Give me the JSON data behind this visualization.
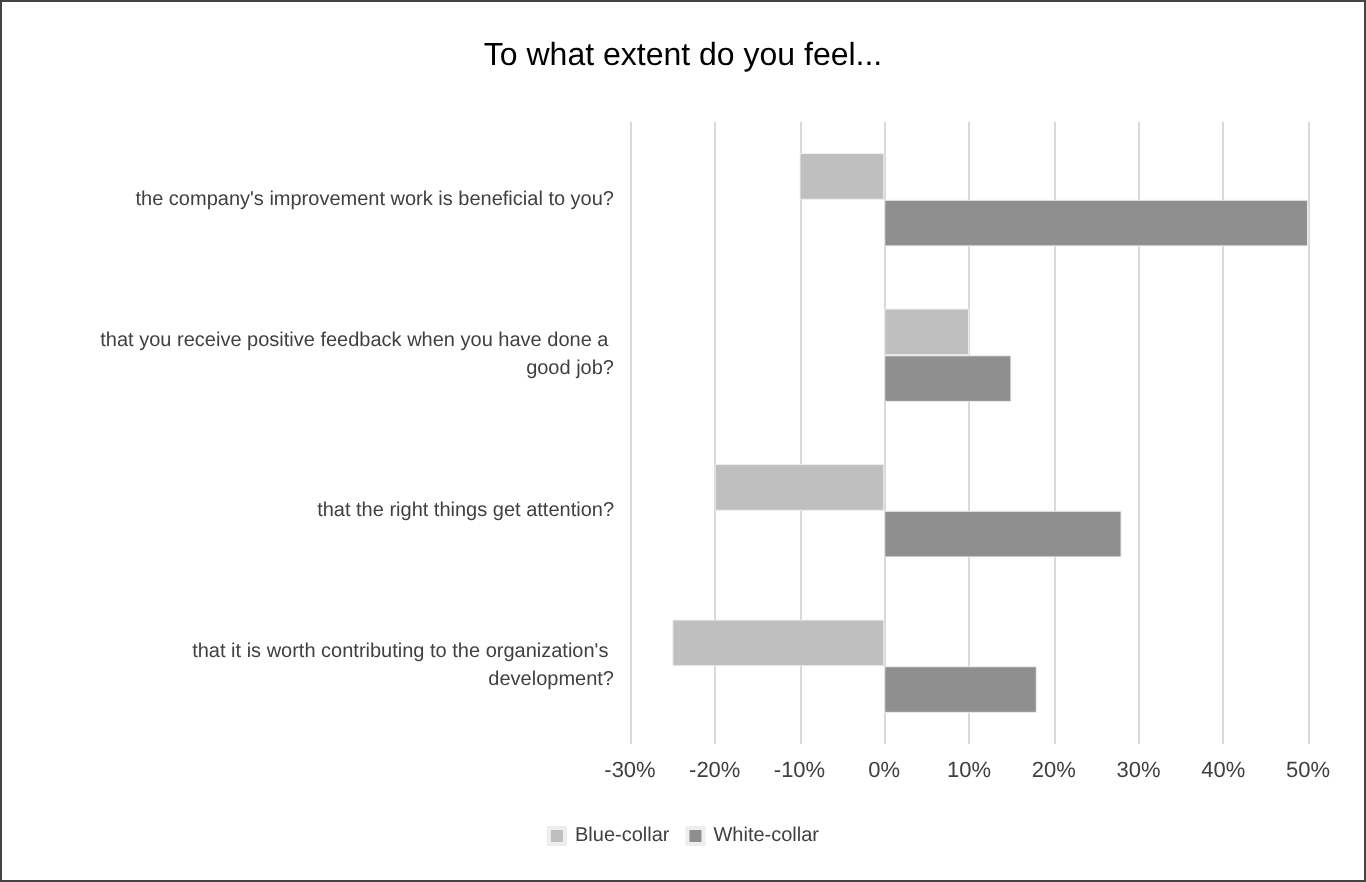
{
  "chart_data": {
    "type": "bar",
    "orientation": "horizontal",
    "title": "To what extent do you feel...",
    "categories": [
      "the company's improvement work is beneficial to you?",
      "that you receive positive feedback when you have done a good job?",
      "that the right things get attention?",
      "that it is worth contributing to the organization's development?"
    ],
    "series": [
      {
        "name": "Blue-collar",
        "color": "#bfbfbf",
        "values": [
          -10,
          10,
          -20,
          -25
        ]
      },
      {
        "name": "White-collar",
        "color": "#8f8f8f",
        "values": [
          50,
          15,
          28,
          18
        ]
      }
    ],
    "xlim": [
      -30,
      50
    ],
    "xticks": [
      {
        "value": -30,
        "label": "-30%"
      },
      {
        "value": -20,
        "label": "-20%"
      },
      {
        "value": -10,
        "label": "-10%"
      },
      {
        "value": 0,
        "label": "0%"
      },
      {
        "value": 10,
        "label": "10%"
      },
      {
        "value": 20,
        "label": "20%"
      },
      {
        "value": 30,
        "label": "30%"
      },
      {
        "value": 40,
        "label": "40%"
      },
      {
        "value": 50,
        "label": "50%"
      }
    ],
    "grid": "x",
    "legend": "bottom"
  }
}
